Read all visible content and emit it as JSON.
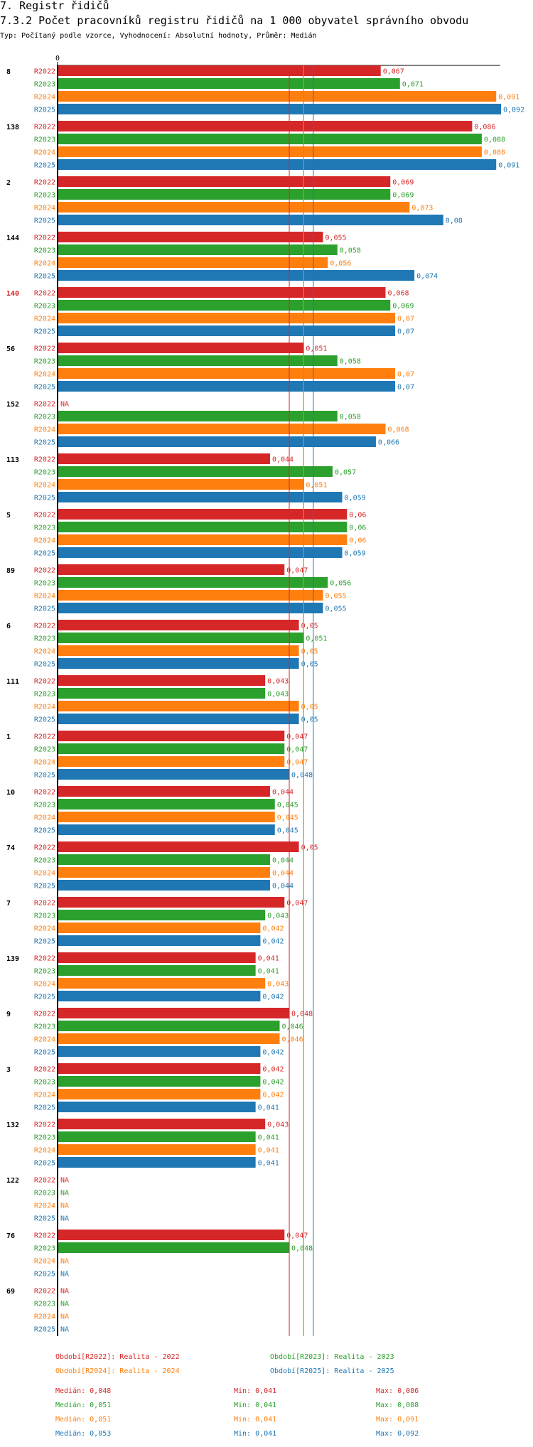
{
  "header": {
    "section_title": "7. Registr řidičů",
    "chart_title": "7.3.2 Počet pracovníků registru řidičů na 1 000 obyvatel správního obvodu",
    "subtitle": "Typ: Počítaný podle vzorce, Vyhodnocení: Absolutní hodnoty, Průměr: Medián"
  },
  "colors": {
    "R2022": "#d62728",
    "R2023": "#2ca02c",
    "R2024": "#ff7f0e",
    "R2025": "#1f77b4"
  },
  "chart_data": {
    "type": "bar",
    "orientation": "horizontal",
    "title": "7.3.2 Počet pracovníků registru řidičů na 1 000 obyvatel správního obvodu",
    "axis_zero_label": "0",
    "xlim": [
      0,
      0.092
    ],
    "series_names": [
      "R2022",
      "R2023",
      "R2024",
      "R2025"
    ],
    "na_label": "NA",
    "highlighted_group": "140",
    "groups": [
      {
        "label": "8",
        "values": [
          "0,067",
          "0,071",
          "0,091",
          "0,092"
        ]
      },
      {
        "label": "138",
        "values": [
          "0,086",
          "0,088",
          "0,088",
          "0,091"
        ]
      },
      {
        "label": "2",
        "values": [
          "0,069",
          "0,069",
          "0,073",
          "0,08"
        ]
      },
      {
        "label": "144",
        "values": [
          "0,055",
          "0,058",
          "0,056",
          "0,074"
        ]
      },
      {
        "label": "140",
        "values": [
          "0,068",
          "0,069",
          "0,07",
          "0,07"
        ]
      },
      {
        "label": "56",
        "values": [
          "0,051",
          "0,058",
          "0,07",
          "0,07"
        ]
      },
      {
        "label": "152",
        "values": [
          null,
          "0,058",
          "0,068",
          "0,066"
        ]
      },
      {
        "label": "113",
        "values": [
          "0,044",
          "0,057",
          "0,051",
          "0,059"
        ]
      },
      {
        "label": "5",
        "values": [
          "0,06",
          "0,06",
          "0,06",
          "0,059"
        ]
      },
      {
        "label": "89",
        "values": [
          "0,047",
          "0,056",
          "0,055",
          "0,055"
        ]
      },
      {
        "label": "6",
        "values": [
          "0,05",
          "0,051",
          "0,05",
          "0,05"
        ]
      },
      {
        "label": "111",
        "values": [
          "0,043",
          "0,043",
          "0,05",
          "0,05"
        ]
      },
      {
        "label": "1",
        "values": [
          "0,047",
          "0,047",
          "0,047",
          "0,048"
        ]
      },
      {
        "label": "10",
        "values": [
          "0,044",
          "0,045",
          "0,045",
          "0,045"
        ]
      },
      {
        "label": "74",
        "values": [
          "0,05",
          "0,044",
          "0,044",
          "0,044"
        ]
      },
      {
        "label": "7",
        "values": [
          "0,047",
          "0,043",
          "0,042",
          "0,042"
        ]
      },
      {
        "label": "139",
        "values": [
          "0,041",
          "0,041",
          "0,043",
          "0,042"
        ]
      },
      {
        "label": "9",
        "values": [
          "0,048",
          "0,046",
          "0,046",
          "0,042"
        ]
      },
      {
        "label": "3",
        "values": [
          "0,042",
          "0,042",
          "0,042",
          "0,041"
        ]
      },
      {
        "label": "132",
        "values": [
          "0,043",
          "0,041",
          "0,041",
          "0,041"
        ]
      },
      {
        "label": "122",
        "values": [
          null,
          null,
          null,
          null
        ]
      },
      {
        "label": "76",
        "values": [
          "0,047",
          "0,048",
          null,
          null
        ]
      },
      {
        "label": "69",
        "values": [
          null,
          null,
          null,
          null
        ]
      }
    ],
    "median_lines": [
      {
        "series": "R2022",
        "value": 0.048
      },
      {
        "series": "R2023",
        "value": 0.051
      },
      {
        "series": "R2024",
        "value": 0.051
      },
      {
        "series": "R2025",
        "value": 0.053
      }
    ]
  },
  "legend": {
    "items": [
      {
        "series": "R2022",
        "text": "Období[R2022]: Realita - 2022"
      },
      {
        "series": "R2023",
        "text": "Období[R2023]: Realita - 2023"
      },
      {
        "series": "R2024",
        "text": "Období[R2024]: Realita - 2024"
      },
      {
        "series": "R2025",
        "text": "Období[R2025]: Realita - 2025"
      }
    ]
  },
  "stats": [
    {
      "series": "R2022",
      "median": "Medián: 0,048",
      "min": "Min: 0,041",
      "max": "Max: 0,086"
    },
    {
      "series": "R2023",
      "median": "Medián: 0,051",
      "min": "Min: 0,041",
      "max": "Max: 0,088"
    },
    {
      "series": "R2024",
      "median": "Medián: 0,051",
      "min": "Min: 0,041",
      "max": "Max: 0,091"
    },
    {
      "series": "R2025",
      "median": "Medián: 0,053",
      "min": "Min: 0,041",
      "max": "Max: 0,092"
    }
  ]
}
